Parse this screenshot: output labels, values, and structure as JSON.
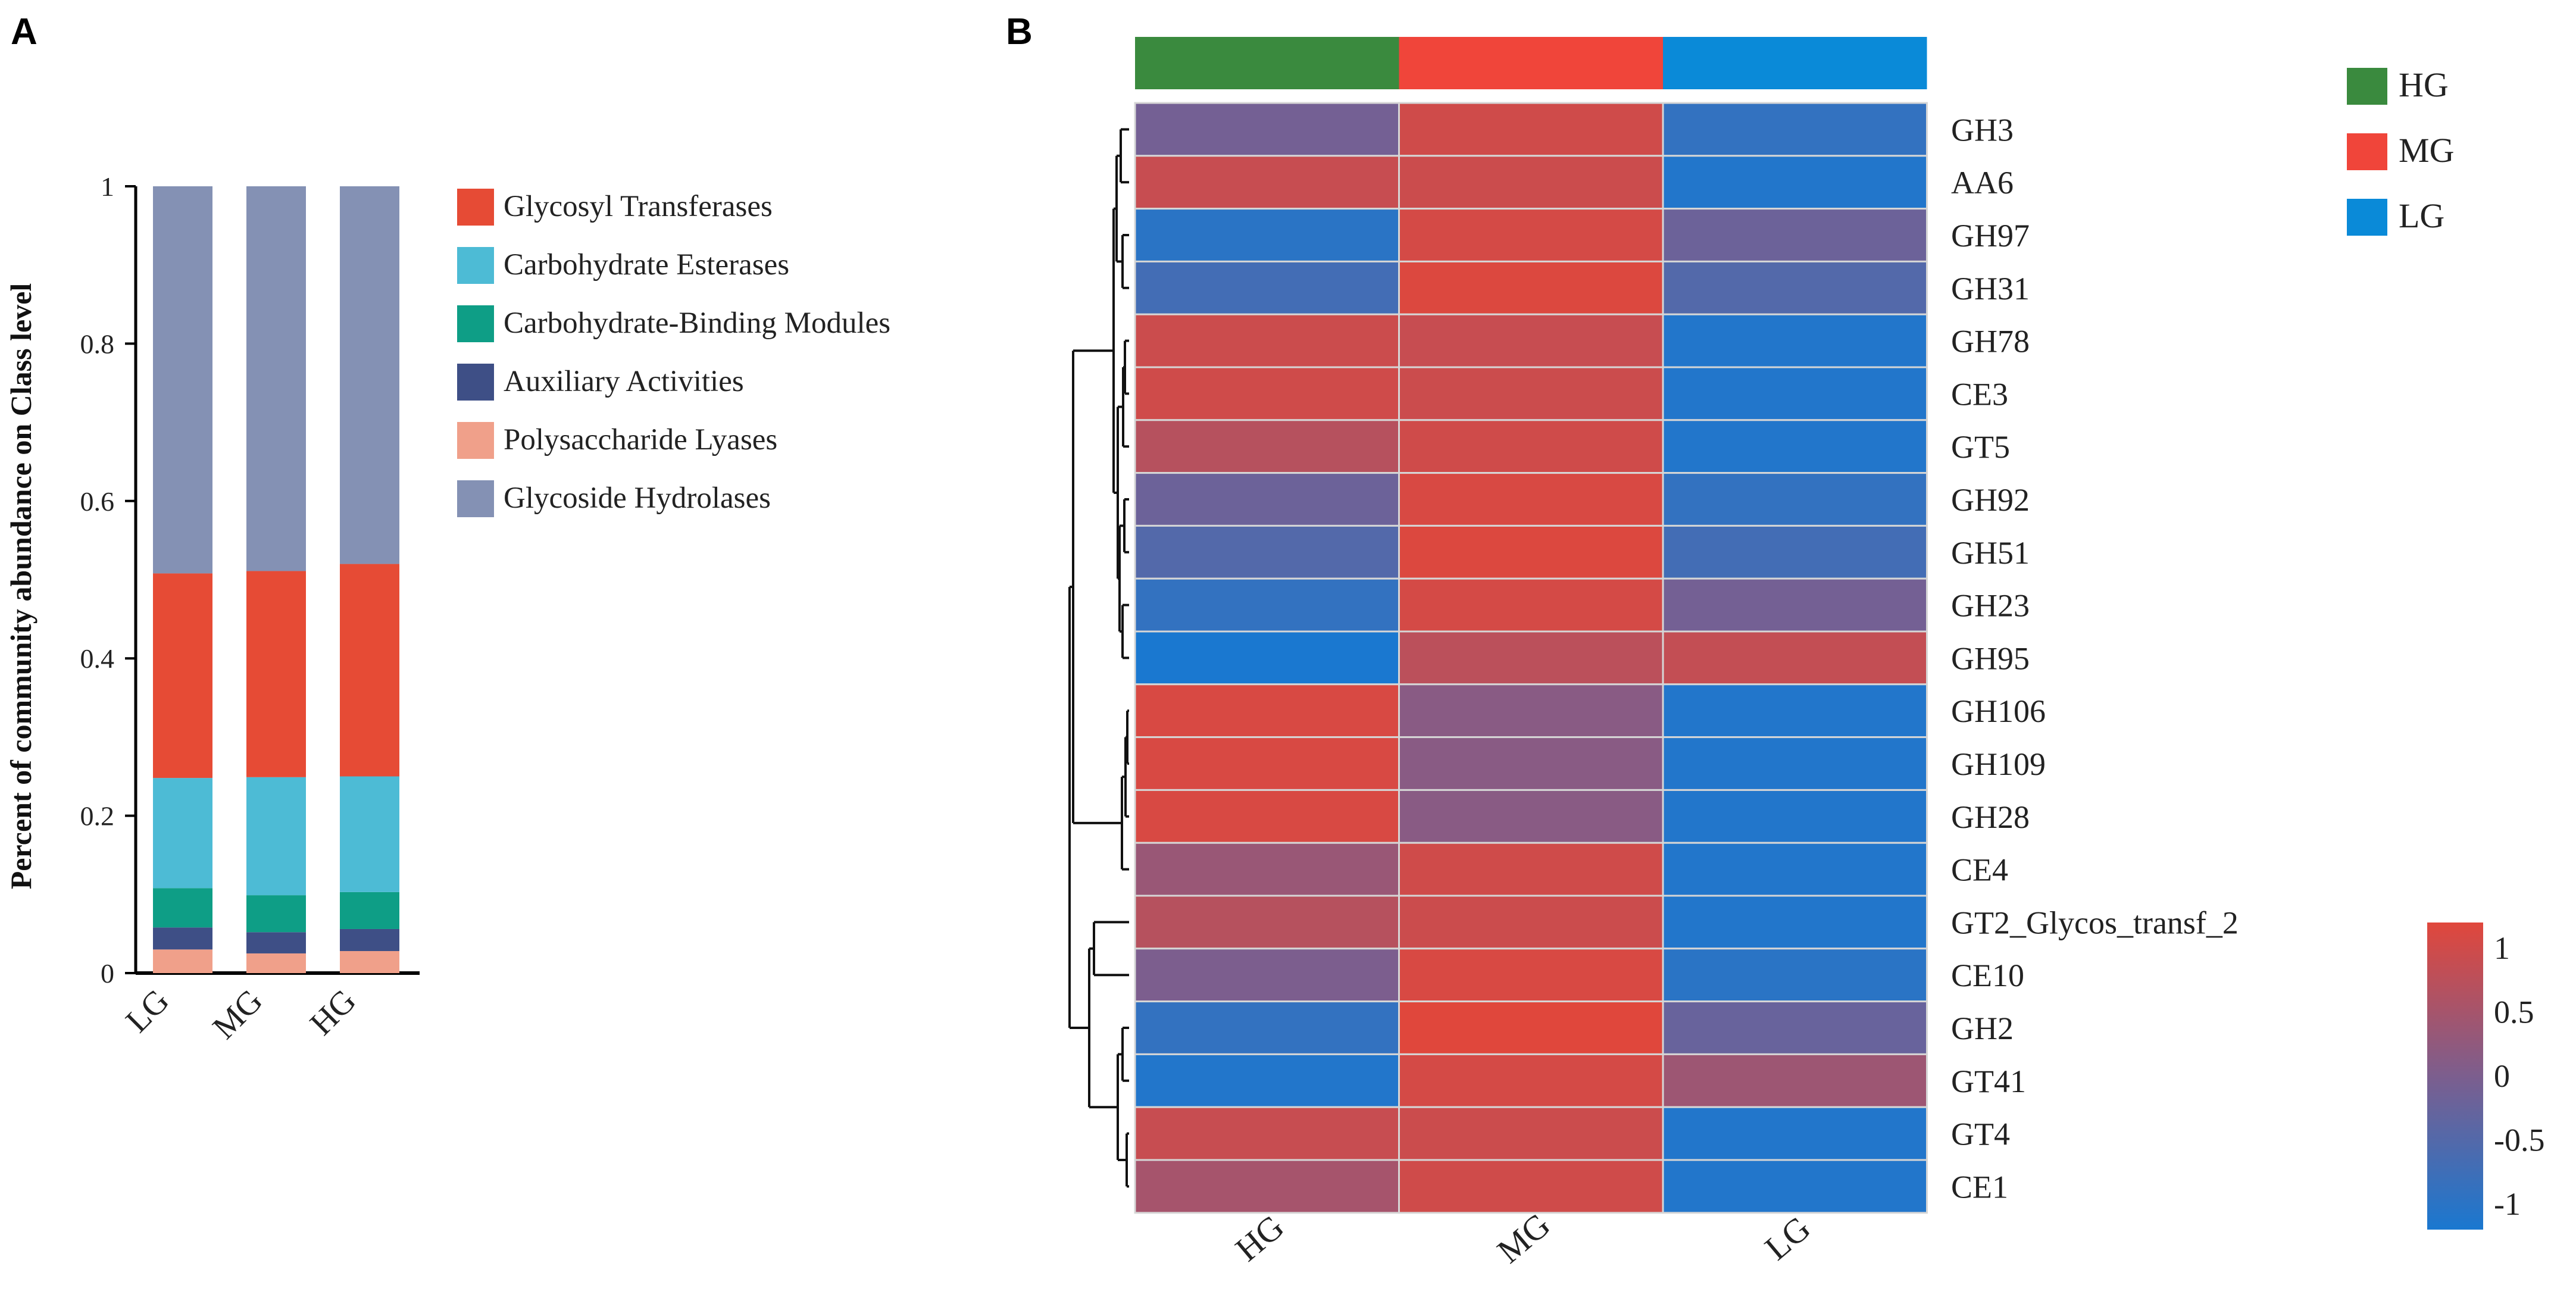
{
  "panels": {
    "a_label": "A",
    "b_label": "B"
  },
  "chart_data": [
    {
      "type": "bar",
      "stacked": true,
      "ylabel": "Percent of community abundance on Class level",
      "ylim": [
        0,
        1
      ],
      "yticks": [
        0,
        0.2,
        0.4,
        0.6,
        0.8,
        1
      ],
      "ytick_labels": [
        "0",
        "0.2",
        "0.4",
        "0.6",
        "0.8",
        "1"
      ],
      "categories": [
        "LG",
        "MG",
        "HG"
      ],
      "series": [
        {
          "name": "Polysaccharide Lyases",
          "color": "#F0A08A",
          "values": [
            0.03,
            0.025,
            0.028
          ]
        },
        {
          "name": "Auxiliary Activities",
          "color": "#3E4F86",
          "values": [
            0.028,
            0.027,
            0.028
          ]
        },
        {
          "name": "Carbohydrate-Binding Modules",
          "color": "#0E9E86",
          "values": [
            0.05,
            0.047,
            0.047
          ]
        },
        {
          "name": "Carbohydrate Esterases",
          "color": "#4DBBD5",
          "values": [
            0.14,
            0.15,
            0.147
          ]
        },
        {
          "name": "Glycosyl Transferases",
          "color": "#E64B35",
          "values": [
            0.26,
            0.262,
            0.27
          ]
        },
        {
          "name": "Glycoside Hydrolases",
          "color": "#8491B4",
          "values": [
            0.492,
            0.489,
            0.48
          ]
        }
      ],
      "legend_order": [
        "Glycosyl Transferases",
        "Carbohydrate Esterases",
        "Carbohydrate-Binding Modules",
        "Auxiliary Activities",
        "Polysaccharide Lyases",
        "Glycoside Hydrolases"
      ],
      "legend_position": "right"
    },
    {
      "type": "heatmap",
      "columns": [
        "HG",
        "MG",
        "LG"
      ],
      "column_colors": [
        "#3A8A3E",
        "#F0453A",
        "#0A8AD8"
      ],
      "rows": [
        "GH3",
        "AA6",
        "GH97",
        "GH31",
        "GH78",
        "CE3",
        "GT5",
        "GH92",
        "GH51",
        "GH23",
        "GH95",
        "GH106",
        "GH109",
        "GH28",
        "CE4",
        "GT2_Glycos_transf_2",
        "CE10",
        "GH2",
        "GT41",
        "GT4",
        "CE1"
      ],
      "values": [
        [
          -0.1,
          1.0,
          -0.9
        ],
        [
          0.9,
          0.95,
          -1.1
        ],
        [
          -1.0,
          1.05,
          -0.2
        ],
        [
          -0.7,
          1.15,
          -0.5
        ],
        [
          0.95,
          0.9,
          -1.1
        ],
        [
          1.0,
          0.95,
          -1.1
        ],
        [
          0.7,
          1.0,
          -1.1
        ],
        [
          -0.2,
          1.1,
          -0.9
        ],
        [
          -0.5,
          1.15,
          -0.7
        ],
        [
          -0.9,
          1.05,
          -0.1
        ],
        [
          -1.2,
          0.75,
          0.85
        ],
        [
          1.1,
          0.15,
          -1.1
        ],
        [
          1.1,
          0.15,
          -1.1
        ],
        [
          1.1,
          0.15,
          -1.1
        ],
        [
          0.35,
          1.0,
          -1.1
        ],
        [
          0.7,
          0.95,
          -1.1
        ],
        [
          0.0,
          1.1,
          -1.0
        ],
        [
          -0.9,
          1.2,
          -0.25
        ],
        [
          -1.1,
          1.05,
          0.4
        ],
        [
          0.9,
          0.95,
          -1.1
        ],
        [
          0.5,
          1.0,
          -1.1
        ]
      ],
      "colorbar": {
        "min": -1.2,
        "max": 1.2,
        "ticks": [
          1,
          0.5,
          0,
          -0.5,
          -1
        ],
        "tick_labels": [
          "1",
          "0.5",
          "0",
          "-0.5",
          "-1"
        ],
        "low_color": "#1A78D0",
        "mid_color": "#7C5E8E",
        "high_color": "#E0473C"
      },
      "legend": [
        {
          "label": "HG",
          "color": "#3A8A3E"
        },
        {
          "label": "MG",
          "color": "#F0453A"
        },
        {
          "label": "LG",
          "color": "#0A8AD8"
        }
      ],
      "legend_position": "top-right",
      "dendrogram": "left"
    }
  ]
}
